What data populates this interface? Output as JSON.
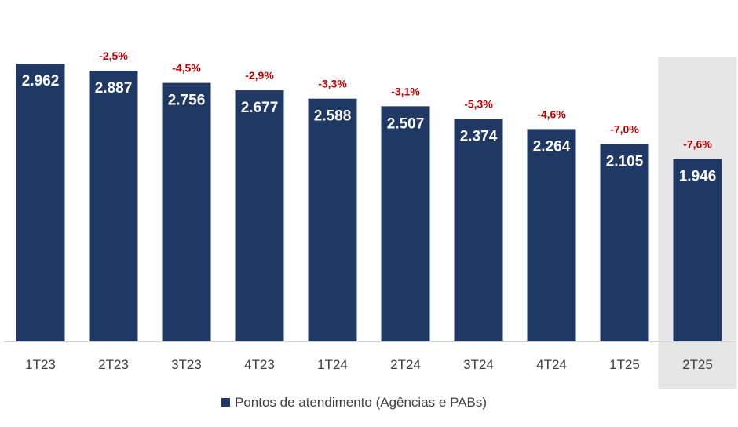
{
  "chart_data": {
    "type": "bar",
    "categories": [
      "1T23",
      "2T23",
      "3T23",
      "4T23",
      "1T24",
      "2T24",
      "3T24",
      "4T24",
      "1T25",
      "2T25"
    ],
    "series": [
      {
        "name": "Pontos de atendimento (Agências e PABs)",
        "values": [
          2962,
          2887,
          2756,
          2677,
          2588,
          2507,
          2374,
          2264,
          2105,
          1946
        ],
        "value_labels": [
          "2.962",
          "2.887",
          "2.756",
          "2.677",
          "2.588",
          "2.507",
          "2.374",
          "2.264",
          "2.105",
          "1.946"
        ],
        "color": "#1f3864"
      }
    ],
    "annotations": [
      "",
      "-2,5%",
      "-4,5%",
      "-2,9%",
      "-3,3%",
      "-3,1%",
      "-5,3%",
      "-4,6%",
      "-7,0%",
      "-7,6%"
    ],
    "annotation_color": "#c00000",
    "highlight_category": "2T25",
    "highlight_color": "#e6e6e6",
    "ylim": [
      0,
      2962
    ],
    "grid": false,
    "legend_position": "bottom"
  }
}
